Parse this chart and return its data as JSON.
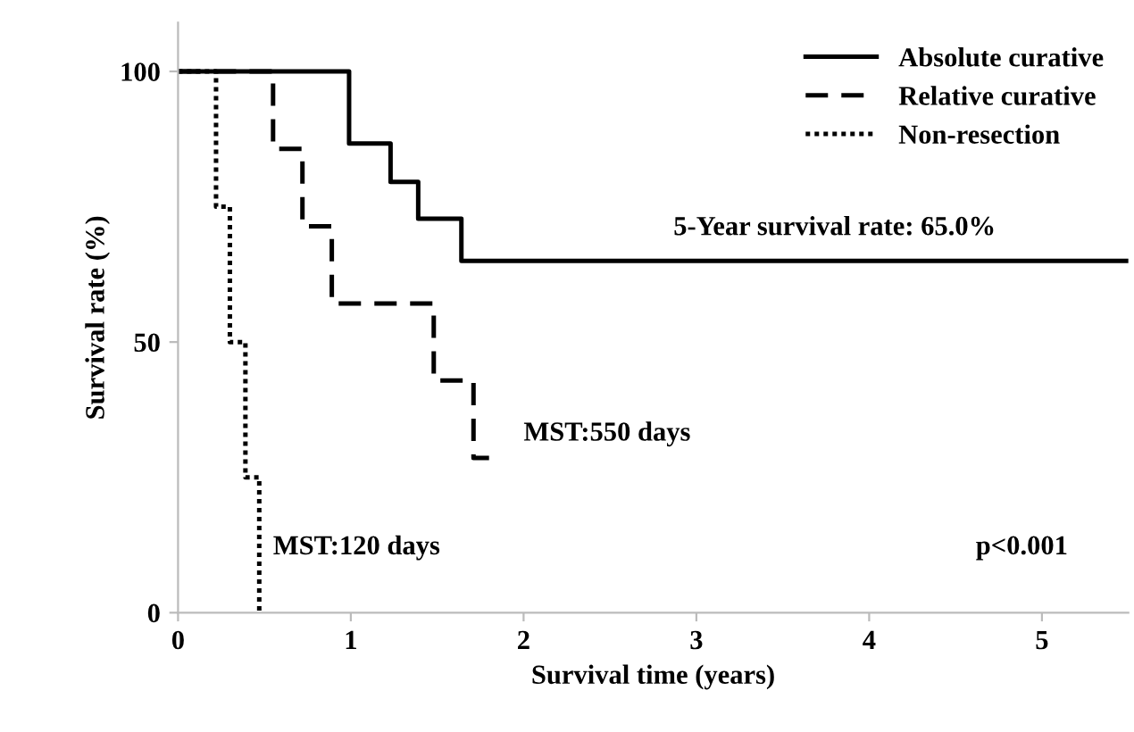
{
  "chart_data": {
    "type": "step",
    "xlabel": "Survival time (years)",
    "ylabel": "Survival rate (%)",
    "xlim": [
      0,
      5.5
    ],
    "ylim": [
      0,
      109
    ],
    "xticks": [
      0,
      1,
      2,
      3,
      4,
      5
    ],
    "yticks": [
      0,
      50,
      100
    ],
    "grid": false,
    "legend": "top right",
    "marker": "none",
    "series": [
      {
        "name": "Absolute curative",
        "color": "#000000",
        "line_style": "solid",
        "x": [
          0,
          0.99,
          1.23,
          1.39,
          1.64,
          5.5
        ],
        "values": [
          100,
          86.7,
          79.6,
          72.8,
          65.0,
          65.0
        ]
      },
      {
        "name": "Relative curative",
        "color": "#000000",
        "line_style": "dashed",
        "x": [
          0,
          0.55,
          0.72,
          0.89,
          1.48,
          1.71,
          1.8
        ],
        "values": [
          100,
          85.7,
          71.4,
          57.1,
          42.9,
          28.6,
          28.6
        ]
      },
      {
        "name": "Non-resection",
        "color": "#000000",
        "line_style": "dotted",
        "x": [
          0,
          0.22,
          0.3,
          0.39,
          0.47
        ],
        "values": [
          100,
          75,
          50,
          25,
          0
        ]
      }
    ],
    "annotations": [
      "5-Year survival rate: 65.0%",
      "MST:550 days",
      "MST:120 days",
      "p<0.001"
    ]
  }
}
